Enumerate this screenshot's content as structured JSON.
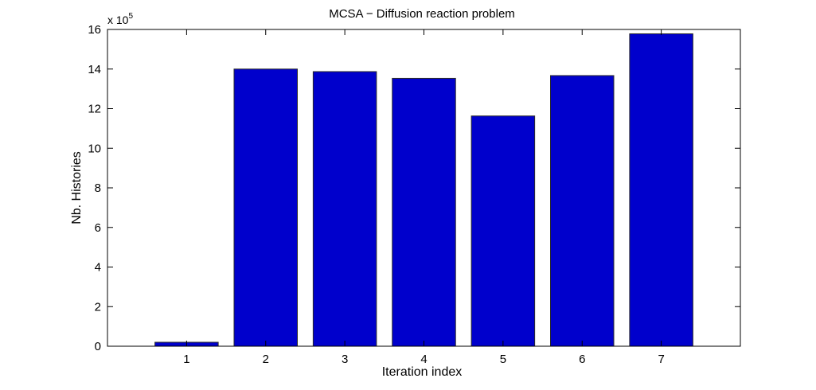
{
  "chart_data": {
    "type": "bar",
    "title": "MCSA − Diffusion reaction problem",
    "xlabel": "Iteration index",
    "ylabel": "Nb. Histories",
    "y_multiplier_text": "x 10",
    "y_multiplier_exponent": "5",
    "categories": [
      "1",
      "2",
      "3",
      "4",
      "5",
      "6",
      "7"
    ],
    "values": [
      20000,
      1400000,
      1387000,
      1353000,
      1163000,
      1367000,
      1578000
    ],
    "ylim": [
      0,
      1600000
    ],
    "yticks": [
      0,
      200000,
      400000,
      600000,
      800000,
      1000000,
      1200000,
      1400000,
      1600000
    ],
    "ytick_labels": [
      "0",
      "2",
      "4",
      "6",
      "8",
      "10",
      "12",
      "14",
      "16"
    ],
    "xlim": [
      0,
      8
    ],
    "grid": false,
    "colors": {
      "bar_fill": "#0000cc",
      "bar_edge": "#2a2a2a",
      "axis": "#000000"
    }
  }
}
